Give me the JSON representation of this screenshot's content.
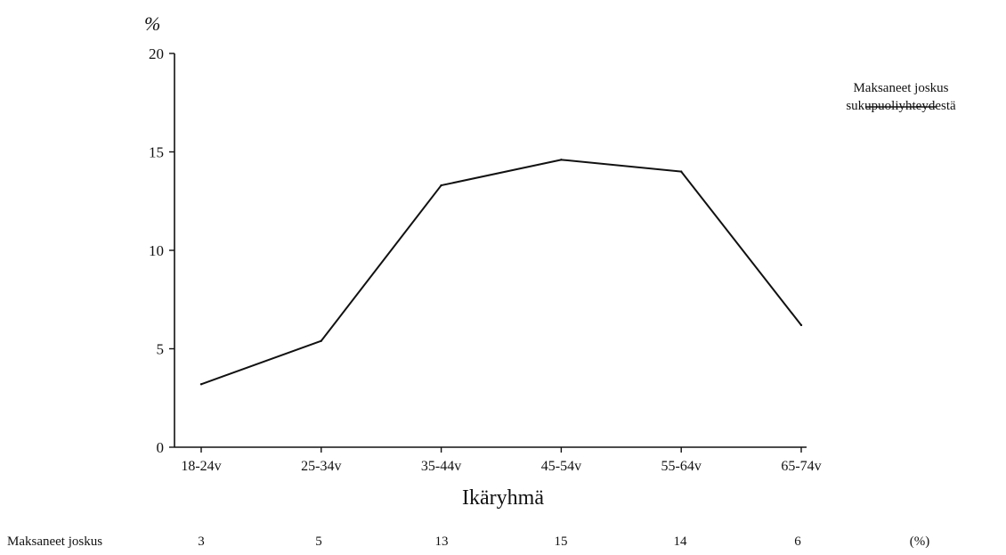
{
  "chart_data": {
    "type": "line",
    "y_unit_label": "%",
    "xlabel": "Ikäryhmä",
    "ylim": [
      0,
      20
    ],
    "yticks": [
      0,
      5,
      10,
      15,
      20
    ],
    "grid": false,
    "legend_placement": "top-right",
    "categories": [
      "18-24v",
      "25-34v",
      "35-44v",
      "45-54v",
      "55-64v",
      "65-74v"
    ],
    "series": [
      {
        "name": "Maksaneet joskus sukupuoliyhteydestä",
        "values": [
          3.2,
          5.4,
          13.3,
          14.6,
          14.0,
          6.2
        ],
        "color": "#111111"
      }
    ],
    "table": {
      "row_label": "Maksaneet joskus",
      "values": [
        "3",
        "5",
        "13",
        "15",
        "14",
        "6"
      ],
      "unit": "(%)"
    }
  },
  "legend": {
    "line1": "Maksaneet joskus",
    "line2": "sukupuoliyhteydestä"
  }
}
